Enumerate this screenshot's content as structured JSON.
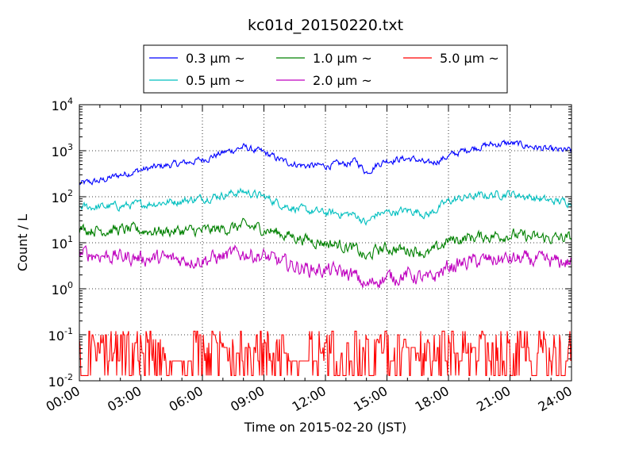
{
  "chart_data": {
    "type": "line",
    "title": "kc01d_20150220.txt",
    "xlabel": "Time on 2015-02-20 (JST)",
    "ylabel": "Count / L",
    "x_ticks": [
      "00:00",
      "03:00",
      "06:00",
      "09:00",
      "12:00",
      "15:00",
      "18:00",
      "21:00",
      "24:00"
    ],
    "x_range_hours": [
      0,
      24
    ],
    "y_scale": "log",
    "y_range": [
      0.01,
      10000
    ],
    "y_ticks": [
      {
        "base": "10",
        "exp": "-2"
      },
      {
        "base": "10",
        "exp": "-1"
      },
      {
        "base": "10",
        "exp": "0"
      },
      {
        "base": "10",
        "exp": "1"
      },
      {
        "base": "10",
        "exp": "2"
      },
      {
        "base": "10",
        "exp": "3"
      },
      {
        "base": "10",
        "exp": "4"
      }
    ],
    "grid": true,
    "legend_position": "top-center",
    "series": [
      {
        "name": "0.3 μm ~",
        "color": "#0000ff",
        "x_hours": [
          0,
          1,
          2,
          3,
          4,
          5,
          6,
          7,
          8,
          9,
          10,
          11,
          12,
          13,
          13.5,
          14,
          14.5,
          15,
          16,
          16.5,
          17,
          18,
          19,
          20,
          21,
          22,
          23,
          24
        ],
        "y": [
          190,
          220,
          300,
          380,
          460,
          530,
          640,
          900,
          1200,
          900,
          580,
          470,
          470,
          520,
          600,
          340,
          500,
          620,
          680,
          630,
          500,
          760,
          1100,
          1350,
          1450,
          1250,
          1020,
          1000
        ],
        "noise": 0.06
      },
      {
        "name": "0.5 μm ~",
        "color": "#00bfbf",
        "x_hours": [
          0,
          1,
          2,
          3,
          4,
          5,
          6,
          7,
          8,
          9,
          10,
          11,
          12,
          13,
          13.5,
          14,
          14.5,
          15,
          16,
          16.5,
          17,
          18,
          19,
          20,
          21,
          22,
          23,
          24
        ],
        "y": [
          60,
          60,
          63,
          68,
          75,
          82,
          92,
          110,
          130,
          100,
          65,
          50,
          45,
          42,
          40,
          26,
          42,
          45,
          50,
          48,
          40,
          80,
          100,
          108,
          118,
          98,
          80,
          78
        ],
        "noise": 0.07
      },
      {
        "name": "1.0 μm ~",
        "color": "#008000",
        "x_hours": [
          0,
          1,
          2,
          3,
          4,
          5,
          6,
          7,
          8,
          9,
          10,
          11,
          12,
          13,
          13.5,
          14,
          14.5,
          15,
          16,
          16.5,
          17,
          18,
          19,
          20,
          21,
          22,
          23,
          24
        ],
        "y": [
          20,
          19,
          19,
          18.5,
          18,
          18,
          18,
          20,
          23,
          20,
          15,
          12,
          10,
          8.5,
          7,
          4.5,
          7,
          7.5,
          7,
          7,
          5.5,
          11,
          13,
          14,
          15,
          13,
          12.5,
          12.5
        ],
        "noise": 0.1
      },
      {
        "name": "2.0 μm ~",
        "color": "#bf00bf",
        "x_hours": [
          0,
          1,
          2,
          3,
          4,
          5,
          6,
          7,
          8,
          9,
          10,
          11,
          12,
          13,
          13.5,
          14,
          14.5,
          15,
          16,
          16.5,
          17,
          18,
          19,
          20,
          21,
          22,
          23,
          24
        ],
        "y": [
          5.8,
          5.5,
          5,
          4.7,
          4.5,
          4.3,
          4.3,
          5,
          6,
          5,
          3.5,
          2.8,
          2.5,
          2.2,
          1.8,
          1.1,
          1.6,
          1.7,
          2,
          1.8,
          1.5,
          3,
          3.8,
          4.2,
          4.4,
          4.2,
          3.8,
          3.8
        ],
        "noise": 0.13
      },
      {
        "name": "5.0 μm ~",
        "color": "#ff0000",
        "x_hours": [
          0,
          24
        ],
        "y": [
          0.02,
          0.035
        ],
        "noise": "spiky 0.01–0.12"
      }
    ]
  }
}
